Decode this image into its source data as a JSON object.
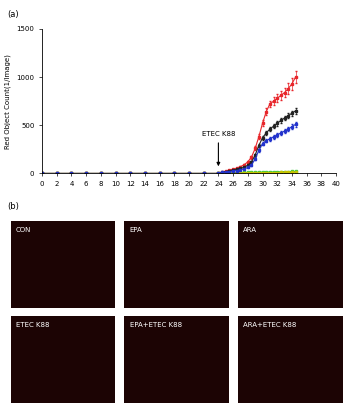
{
  "chart_data": {
    "type": "line",
    "panel_label": "(a)",
    "y_label": "Red Object Count(1/Image)",
    "x": [
      0,
      2,
      4,
      6,
      8,
      10,
      12,
      14,
      16,
      18,
      20,
      22,
      24,
      24.5,
      25,
      25.5,
      26,
      26.5,
      27,
      27.5,
      28,
      28.5,
      29,
      29.5,
      30,
      30.5,
      31,
      31.5,
      32,
      32.5,
      33,
      33.5,
      34,
      34.5
    ],
    "series": [
      {
        "color": "#e8262b",
        "marker": "square",
        "values": [
          0,
          0,
          0,
          0,
          0,
          0,
          0,
          0,
          0,
          0,
          0,
          0,
          0,
          15,
          25,
          35,
          45,
          55,
          70,
          90,
          120,
          170,
          260,
          380,
          520,
          640,
          720,
          750,
          780,
          810,
          840,
          880,
          930,
          1000
        ],
        "errors": [
          0,
          0,
          0,
          0,
          0,
          0,
          0,
          0,
          0,
          0,
          0,
          0,
          0,
          2,
          3,
          3,
          4,
          5,
          6,
          8,
          10,
          15,
          20,
          25,
          30,
          35,
          35,
          40,
          40,
          45,
          50,
          55,
          60,
          65
        ]
      },
      {
        "color": "#222222",
        "marker": "square",
        "values": [
          0,
          0,
          0,
          0,
          0,
          0,
          0,
          0,
          0,
          0,
          0,
          0,
          0,
          12,
          20,
          28,
          35,
          42,
          52,
          65,
          85,
          120,
          190,
          290,
          370,
          420,
          460,
          490,
          520,
          550,
          575,
          600,
          625,
          650
        ],
        "errors": [
          0,
          0,
          0,
          0,
          0,
          0,
          0,
          0,
          0,
          0,
          0,
          0,
          0,
          2,
          2,
          3,
          3,
          4,
          5,
          6,
          8,
          10,
          15,
          20,
          20,
          20,
          22,
          22,
          25,
          25,
          25,
          28,
          28,
          30
        ]
      },
      {
        "color": "#2233cc",
        "marker": "square",
        "values": [
          0,
          0,
          0,
          0,
          0,
          0,
          0,
          0,
          0,
          0,
          0,
          0,
          0,
          10,
          15,
          20,
          25,
          30,
          38,
          48,
          62,
          90,
          150,
          240,
          310,
          340,
          360,
          380,
          400,
          420,
          440,
          460,
          485,
          510
        ],
        "errors": [
          0,
          0,
          0,
          0,
          0,
          0,
          0,
          0,
          0,
          0,
          0,
          0,
          0,
          2,
          2,
          2,
          3,
          3,
          4,
          5,
          6,
          8,
          12,
          15,
          15,
          18,
          18,
          20,
          20,
          20,
          22,
          22,
          25,
          25
        ]
      },
      {
        "color": "#3ecc3e",
        "marker": "square",
        "values": [
          0,
          0,
          0,
          0,
          0,
          0,
          0,
          0,
          0,
          0,
          0,
          0,
          0,
          5,
          6,
          7,
          8,
          9,
          10,
          10,
          11,
          12,
          13,
          14,
          15,
          15,
          16,
          17,
          18,
          18,
          19,
          20,
          21,
          22
        ]
      },
      {
        "color": "#c8c400",
        "marker": "square",
        "values": [
          0,
          0,
          0,
          0,
          0,
          0,
          0,
          0,
          0,
          0,
          0,
          0,
          0,
          3,
          3,
          4,
          4,
          5,
          5,
          6,
          6,
          7,
          7,
          8,
          8,
          8,
          9,
          9,
          9,
          10,
          10,
          10,
          11,
          11
        ]
      }
    ],
    "xlim": [
      0,
      40
    ],
    "xticks": [
      0,
      2,
      4,
      6,
      8,
      10,
      12,
      14,
      16,
      18,
      20,
      22,
      24,
      26,
      28,
      30,
      32,
      34,
      36,
      38,
      40
    ],
    "ylim": [
      0,
      1500
    ],
    "yticks": [
      0,
      500,
      1000,
      1500
    ],
    "annotations": [
      {
        "text": "ETEC K88",
        "x": 24
      }
    ]
  },
  "images": {
    "panel_label": "(b)",
    "panels": [
      "CON",
      "EPA",
      "ARA",
      "ETEC K88",
      "EPA+ETEC K88",
      "ARA+ETEC K88"
    ]
  }
}
